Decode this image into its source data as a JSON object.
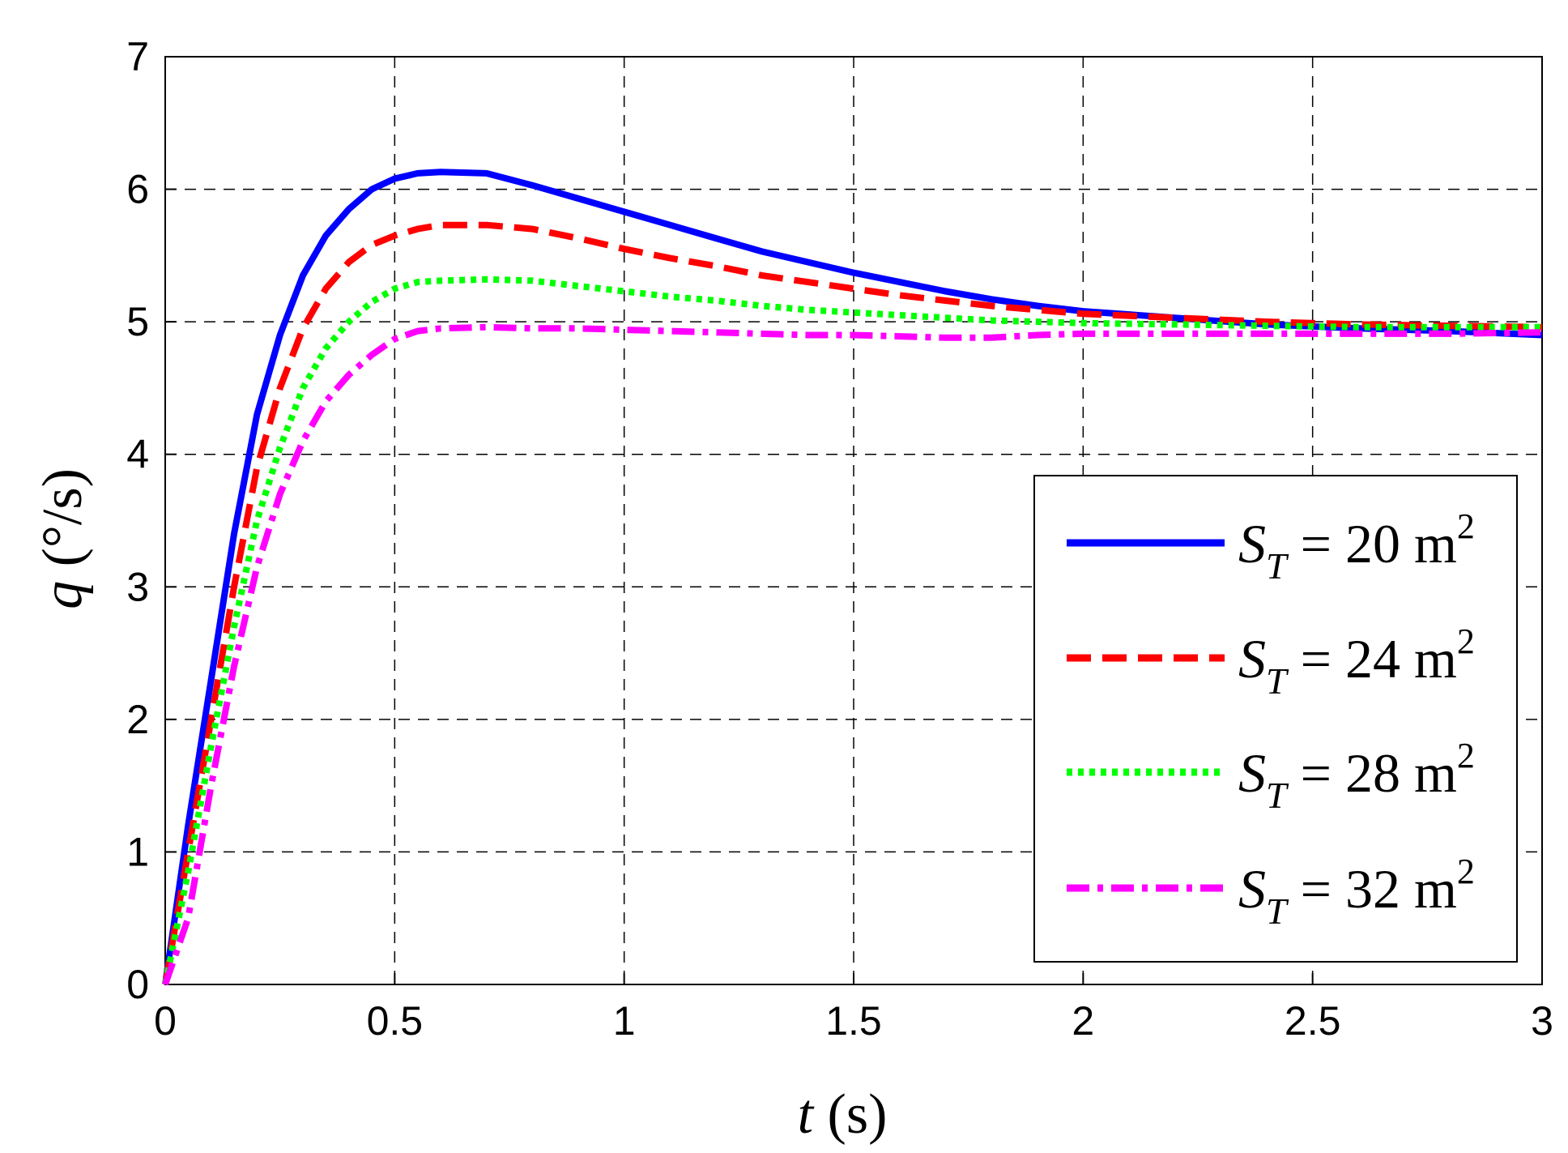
{
  "chart_data": {
    "type": "line",
    "xlabel": {
      "var": "t",
      "unit": " (s)"
    },
    "ylabel": {
      "var": "q",
      "unit": " (°/s)"
    },
    "xlim": [
      0,
      3
    ],
    "ylim": [
      0,
      7
    ],
    "xticks": [
      {
        "v": 0,
        "label": "0"
      },
      {
        "v": 0.5,
        "label": "0.5"
      },
      {
        "v": 1,
        "label": "1"
      },
      {
        "v": 1.5,
        "label": "1.5"
      },
      {
        "v": 2,
        "label": "2"
      },
      {
        "v": 2.5,
        "label": "2.5"
      },
      {
        "v": 3,
        "label": "3"
      }
    ],
    "yticks": [
      {
        "v": 0,
        "label": "0"
      },
      {
        "v": 1,
        "label": "1"
      },
      {
        "v": 2,
        "label": "2"
      },
      {
        "v": 3,
        "label": "3"
      },
      {
        "v": 4,
        "label": "4"
      },
      {
        "v": 5,
        "label": "5"
      },
      {
        "v": 6,
        "label": "6"
      },
      {
        "v": 7,
        "label": "7"
      }
    ],
    "grid": true,
    "legend_position": "right",
    "series": [
      {
        "name": "S_T = 20 m^2",
        "legend": {
          "sym": "S",
          "sub": "T",
          "mid": " = 20 m",
          "sup": "2"
        },
        "color": "#0000ff",
        "style": "solid",
        "points": [
          [
            0,
            0
          ],
          [
            0.05,
            1.2
          ],
          [
            0.1,
            2.3
          ],
          [
            0.15,
            3.4
          ],
          [
            0.2,
            4.3
          ],
          [
            0.25,
            4.9
          ],
          [
            0.3,
            5.35
          ],
          [
            0.35,
            5.65
          ],
          [
            0.4,
            5.85
          ],
          [
            0.45,
            6.0
          ],
          [
            0.5,
            6.08
          ],
          [
            0.55,
            6.12
          ],
          [
            0.6,
            6.13
          ],
          [
            0.7,
            6.12
          ],
          [
            0.8,
            6.03
          ],
          [
            0.9,
            5.93
          ],
          [
            1.0,
            5.83
          ],
          [
            1.1,
            5.73
          ],
          [
            1.2,
            5.63
          ],
          [
            1.3,
            5.53
          ],
          [
            1.4,
            5.45
          ],
          [
            1.5,
            5.37
          ],
          [
            1.6,
            5.3
          ],
          [
            1.7,
            5.23
          ],
          [
            1.8,
            5.17
          ],
          [
            1.9,
            5.12
          ],
          [
            2.0,
            5.08
          ],
          [
            2.2,
            5.03
          ],
          [
            2.4,
            4.98
          ],
          [
            2.6,
            4.95
          ],
          [
            2.8,
            4.93
          ],
          [
            3.0,
            4.9
          ]
        ]
      },
      {
        "name": "S_T = 24 m^2",
        "legend": {
          "sym": "S",
          "sub": "T",
          "mid": " = 24 m",
          "sup": "2"
        },
        "color": "#ff0000",
        "style": "dashed",
        "points": [
          [
            0,
            0
          ],
          [
            0.05,
            1.0
          ],
          [
            0.1,
            2.0
          ],
          [
            0.15,
            3.0
          ],
          [
            0.2,
            3.9
          ],
          [
            0.25,
            4.5
          ],
          [
            0.3,
            4.95
          ],
          [
            0.35,
            5.25
          ],
          [
            0.4,
            5.45
          ],
          [
            0.45,
            5.58
          ],
          [
            0.5,
            5.65
          ],
          [
            0.55,
            5.7
          ],
          [
            0.6,
            5.73
          ],
          [
            0.7,
            5.73
          ],
          [
            0.8,
            5.7
          ],
          [
            0.9,
            5.63
          ],
          [
            1.0,
            5.55
          ],
          [
            1.1,
            5.48
          ],
          [
            1.2,
            5.42
          ],
          [
            1.3,
            5.35
          ],
          [
            1.4,
            5.3
          ],
          [
            1.5,
            5.25
          ],
          [
            1.6,
            5.2
          ],
          [
            1.7,
            5.16
          ],
          [
            1.8,
            5.12
          ],
          [
            1.9,
            5.09
          ],
          [
            2.0,
            5.06
          ],
          [
            2.2,
            5.03
          ],
          [
            2.4,
            5.0
          ],
          [
            2.6,
            4.98
          ],
          [
            2.8,
            4.97
          ],
          [
            3.0,
            4.96
          ]
        ]
      },
      {
        "name": "S_T = 28 m^2",
        "legend": {
          "sym": "S",
          "sub": "T",
          "mid": " = 28 m",
          "sup": "2"
        },
        "color": "#00ff00",
        "style": "dotted",
        "points": [
          [
            0,
            0
          ],
          [
            0.05,
            0.85
          ],
          [
            0.1,
            1.8
          ],
          [
            0.15,
            2.7
          ],
          [
            0.2,
            3.5
          ],
          [
            0.25,
            4.05
          ],
          [
            0.3,
            4.5
          ],
          [
            0.35,
            4.8
          ],
          [
            0.4,
            5.0
          ],
          [
            0.45,
            5.15
          ],
          [
            0.5,
            5.25
          ],
          [
            0.55,
            5.3
          ],
          [
            0.6,
            5.31
          ],
          [
            0.7,
            5.32
          ],
          [
            0.8,
            5.31
          ],
          [
            0.9,
            5.27
          ],
          [
            1.0,
            5.23
          ],
          [
            1.1,
            5.19
          ],
          [
            1.2,
            5.16
          ],
          [
            1.3,
            5.12
          ],
          [
            1.4,
            5.09
          ],
          [
            1.5,
            5.07
          ],
          [
            1.6,
            5.05
          ],
          [
            1.7,
            5.03
          ],
          [
            1.8,
            5.01
          ],
          [
            1.9,
            5.0
          ],
          [
            2.0,
            4.99
          ],
          [
            2.2,
            4.98
          ],
          [
            2.4,
            4.97
          ],
          [
            2.6,
            4.96
          ],
          [
            2.8,
            4.96
          ],
          [
            3.0,
            4.96
          ]
        ]
      },
      {
        "name": "S_T = 32 m^2",
        "legend": {
          "sym": "S",
          "sub": "T",
          "mid": " = 32 m",
          "sup": "2"
        },
        "color": "#ff00ff",
        "style": "dashdot",
        "points": [
          [
            0,
            0
          ],
          [
            0.05,
            0.5
          ],
          [
            0.1,
            1.5
          ],
          [
            0.15,
            2.4
          ],
          [
            0.2,
            3.15
          ],
          [
            0.25,
            3.7
          ],
          [
            0.3,
            4.1
          ],
          [
            0.35,
            4.4
          ],
          [
            0.4,
            4.6
          ],
          [
            0.45,
            4.75
          ],
          [
            0.5,
            4.87
          ],
          [
            0.55,
            4.93
          ],
          [
            0.6,
            4.95
          ],
          [
            0.7,
            4.96
          ],
          [
            0.8,
            4.95
          ],
          [
            0.9,
            4.95
          ],
          [
            1.0,
            4.94
          ],
          [
            1.1,
            4.93
          ],
          [
            1.2,
            4.92
          ],
          [
            1.3,
            4.91
          ],
          [
            1.4,
            4.9
          ],
          [
            1.5,
            4.9
          ],
          [
            1.6,
            4.89
          ],
          [
            1.7,
            4.88
          ],
          [
            1.8,
            4.88
          ],
          [
            1.9,
            4.9
          ],
          [
            2.0,
            4.91
          ],
          [
            2.2,
            4.91
          ],
          [
            2.4,
            4.91
          ],
          [
            2.6,
            4.91
          ],
          [
            2.8,
            4.91
          ],
          [
            3.0,
            4.92
          ]
        ]
      }
    ]
  }
}
